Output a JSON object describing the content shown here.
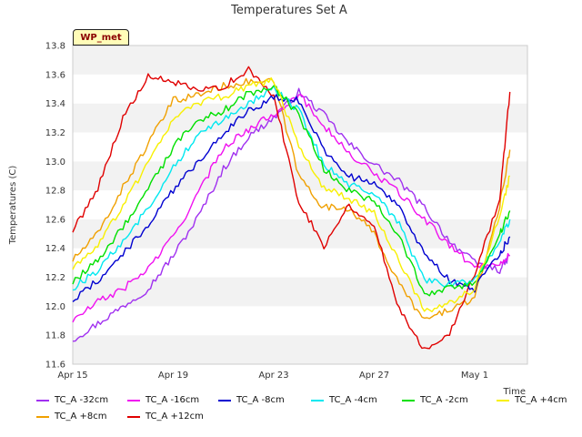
{
  "chart_data": {
    "type": "line",
    "title": "Temperatures Set A",
    "xlabel": "Time",
    "ylabel": "Temperatures (C)",
    "ylim": [
      11.6,
      13.8
    ],
    "yticks": [
      "11.6",
      "11.8",
      "12.0",
      "12.2",
      "12.4",
      "12.6",
      "12.8",
      "13.0",
      "13.2",
      "13.4",
      "13.6",
      "13.8"
    ],
    "xlim": [
      0,
      18.1
    ],
    "xticks": [
      {
        "label": "Apr 15",
        "day": 0
      },
      {
        "label": "Apr 19",
        "day": 4
      },
      {
        "label": "Apr 23",
        "day": 8
      },
      {
        "label": "Apr 27",
        "day": 12
      },
      {
        "label": "May 1",
        "day": 16
      }
    ],
    "badge": "WP_met",
    "grid": "horizontal bands",
    "legend_position": "bottom",
    "series": [
      {
        "name": "TC_A -32cm",
        "color": "#a030f0",
        "x": [
          0,
          1,
          2,
          3,
          4,
          5,
          6,
          7,
          8,
          9,
          10,
          11,
          12,
          13,
          14,
          15,
          16,
          17,
          17.4
        ],
        "y": [
          11.77,
          11.88,
          12.0,
          12.12,
          12.35,
          12.62,
          12.95,
          13.17,
          13.3,
          13.48,
          13.32,
          13.12,
          12.98,
          12.86,
          12.68,
          12.45,
          12.3,
          12.25,
          12.35
        ]
      },
      {
        "name": "TC_A +8cm",
        "color": "#f0a000",
        "x": [
          0,
          1,
          2,
          3,
          4,
          5,
          6,
          7,
          8,
          9,
          10,
          11,
          12,
          13,
          14,
          15,
          16,
          17,
          17.4
        ],
        "y": [
          12.32,
          12.5,
          12.82,
          13.12,
          13.42,
          13.46,
          13.52,
          13.55,
          13.55,
          12.9,
          12.68,
          12.68,
          12.5,
          12.15,
          11.9,
          11.98,
          12.05,
          12.7,
          13.08
        ]
      },
      {
        "name": "TC_A -16cm",
        "color": "#f010f0",
        "x": [
          0,
          1,
          2,
          3,
          4,
          5,
          6,
          7,
          8,
          9,
          10,
          11,
          12,
          13,
          14,
          15,
          16,
          17,
          17.4
        ],
        "y": [
          11.9,
          12.03,
          12.12,
          12.26,
          12.48,
          12.78,
          13.1,
          13.22,
          13.33,
          13.46,
          13.25,
          13.05,
          12.92,
          12.78,
          12.6,
          12.42,
          12.27,
          12.3,
          12.35
        ]
      },
      {
        "name": "TC_A +12cm",
        "color": "#e00000",
        "x": [
          0,
          1,
          2,
          3,
          4,
          5,
          6,
          7,
          8,
          9,
          10,
          11,
          12,
          13,
          14,
          15,
          16,
          17,
          17.4
        ],
        "y": [
          12.52,
          12.82,
          13.3,
          13.58,
          13.55,
          13.48,
          13.52,
          13.63,
          13.45,
          12.72,
          12.42,
          12.7,
          12.55,
          11.98,
          11.7,
          11.82,
          12.22,
          12.75,
          13.48
        ]
      },
      {
        "name": "TC_A -8cm",
        "color": "#0000d0",
        "x": [
          0,
          1,
          2,
          3,
          4,
          5,
          6,
          7,
          8,
          9,
          10,
          11,
          12,
          13,
          14,
          15,
          16,
          17,
          17.4
        ],
        "y": [
          12.04,
          12.18,
          12.36,
          12.56,
          12.8,
          13.0,
          13.2,
          13.35,
          13.44,
          13.42,
          13.08,
          12.9,
          12.84,
          12.7,
          12.35,
          12.18,
          12.12,
          12.36,
          12.48
        ]
      },
      {
        "name": "TC_A -4cm",
        "color": "#00e8f0",
        "x": [
          0,
          1,
          2,
          3,
          4,
          5,
          6,
          7,
          8,
          9,
          10,
          11,
          12,
          13,
          14,
          15,
          16,
          17,
          17.4
        ],
        "y": [
          12.12,
          12.25,
          12.45,
          12.68,
          12.96,
          13.18,
          13.3,
          13.4,
          13.5,
          13.35,
          12.98,
          12.84,
          12.78,
          12.56,
          12.18,
          12.15,
          12.18,
          12.45,
          12.6
        ]
      },
      {
        "name": "TC_A -2cm",
        "color": "#00e000",
        "x": [
          0,
          1,
          2,
          3,
          4,
          5,
          6,
          7,
          8,
          9,
          10,
          11,
          12,
          13,
          14,
          15,
          16,
          17,
          17.4
        ],
        "y": [
          12.16,
          12.32,
          12.55,
          12.8,
          13.1,
          13.28,
          13.35,
          13.47,
          13.52,
          13.32,
          12.95,
          12.8,
          12.72,
          12.48,
          12.08,
          12.12,
          12.16,
          12.5,
          12.66
        ]
      },
      {
        "name": "TC_A +4cm",
        "color": "#f8f000",
        "x": [
          0,
          1,
          2,
          3,
          4,
          5,
          6,
          7,
          8,
          9,
          10,
          11,
          12,
          13,
          14,
          15,
          16,
          17,
          17.4
        ],
        "y": [
          12.26,
          12.42,
          12.7,
          12.98,
          13.3,
          13.4,
          13.45,
          13.52,
          13.56,
          13.1,
          12.82,
          12.74,
          12.64,
          12.32,
          11.96,
          12.02,
          12.12,
          12.62,
          12.9
        ]
      }
    ]
  }
}
